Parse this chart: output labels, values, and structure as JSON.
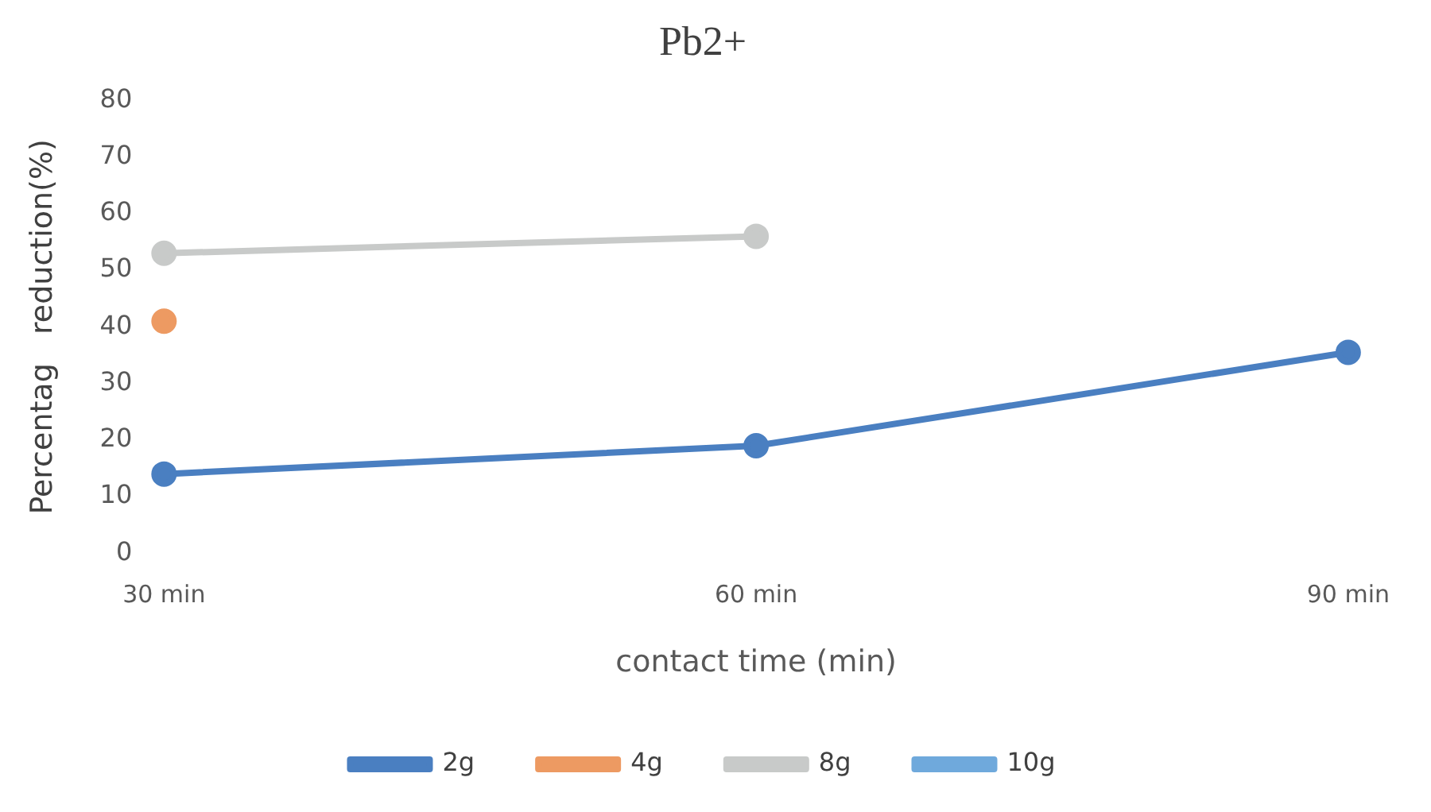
{
  "chart_data": {
    "type": "line",
    "title": "Pb2+",
    "xlabel": "contact time (min)",
    "ylabel": "Percentag   reduction(%)",
    "categories": [
      "30 min",
      "60 min",
      "90 min"
    ],
    "series": [
      {
        "name": "2g",
        "color": "#4a7fc1",
        "values": [
          14,
          19,
          35.5
        ]
      },
      {
        "name": "4g",
        "color": "#ed9a62",
        "values": [
          41,
          null,
          null
        ]
      },
      {
        "name": "8g",
        "color": "#c8cac9",
        "values": [
          53,
          56,
          null
        ]
      },
      {
        "name": "10g",
        "color": "#6fa9dc",
        "values": [
          null,
          null,
          null
        ]
      }
    ],
    "ylim": [
      0,
      80
    ],
    "yticks": [
      0,
      10,
      20,
      30,
      40,
      50,
      60,
      70,
      80
    ],
    "grid": false,
    "legend": "bottom",
    "marker": "circle",
    "line_style": "solid"
  }
}
